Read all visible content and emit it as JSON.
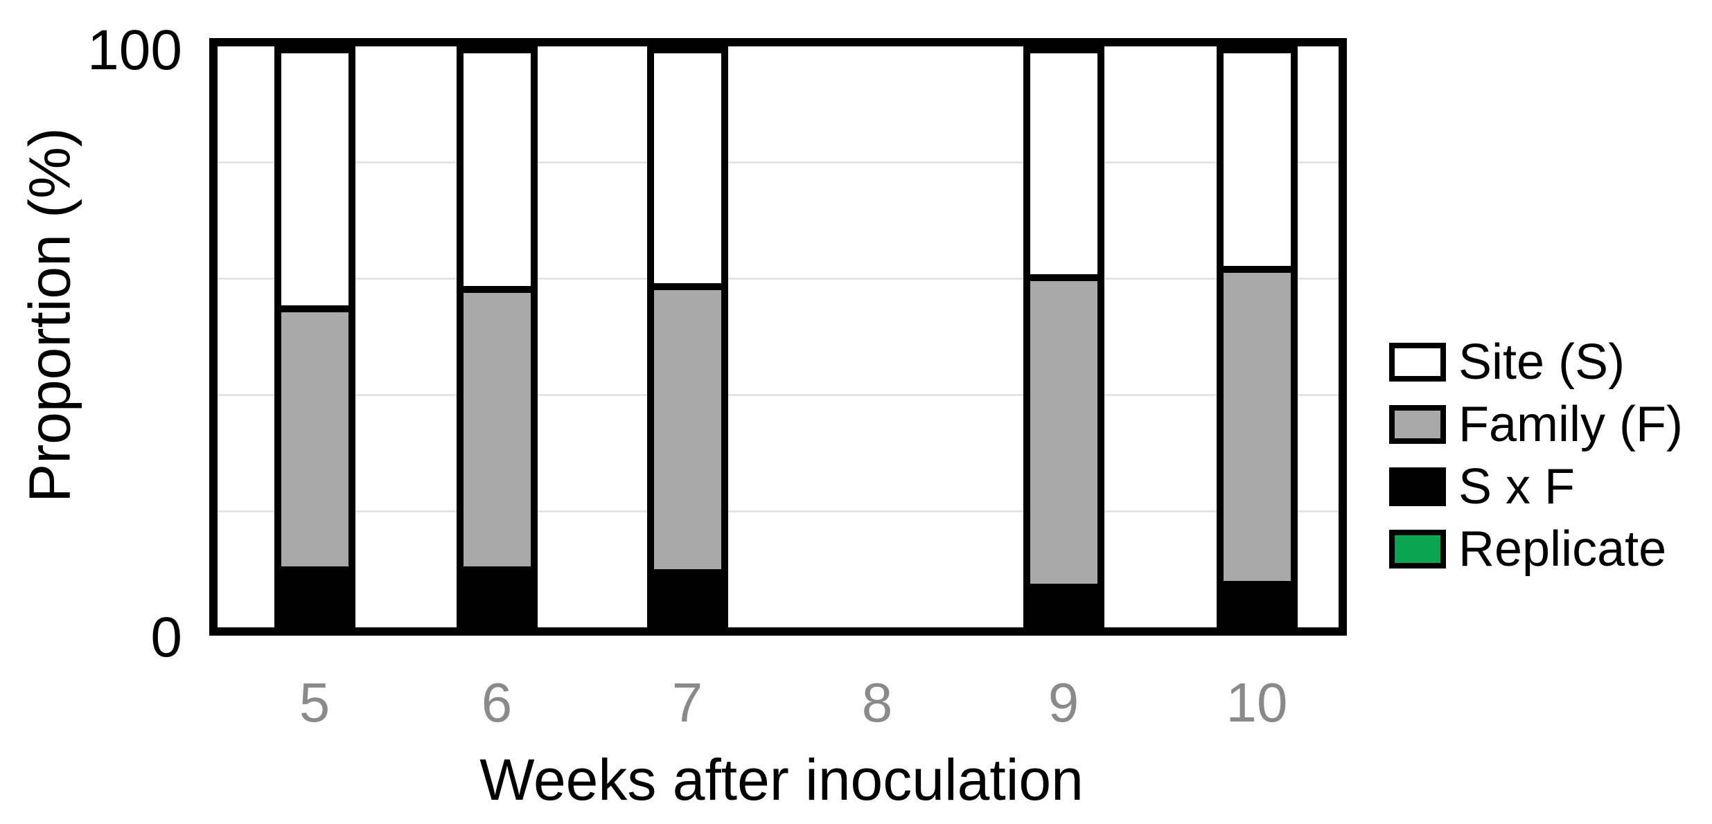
{
  "figure": {
    "y_axis": {
      "title": "Proportion (%)",
      "tick_top": "100",
      "tick_bottom": "0"
    },
    "x_axis": {
      "title": "Weeks after inoculation"
    },
    "legend": {
      "entries": [
        {
          "label": "Site (S)",
          "color": "#ffffff"
        },
        {
          "label": "Family (F)",
          "color": "#a9a9a9"
        },
        {
          "label": "S x F",
          "color": "#000000"
        },
        {
          "label": "Replicate",
          "color": "#0ba552"
        }
      ]
    }
  },
  "chart_data": {
    "type": "bar",
    "stacked": true,
    "title": "",
    "xlabel": "Weeks after inoculation",
    "ylabel": "Proportion (%)",
    "ylim": [
      0,
      100
    ],
    "y_ticks_shown": [
      "0",
      "100"
    ],
    "gridlines_percent": [
      20,
      40,
      60,
      80
    ],
    "grid": "horizontal-light-gray",
    "legend_position": "right",
    "categories": [
      "5",
      "6",
      "7",
      "8",
      "9",
      "10"
    ],
    "series": [
      {
        "name": "S x F",
        "color": "#000000",
        "stack_order": "bottom",
        "values": [
          9.5,
          9.5,
          9,
          0,
          6.5,
          7
        ]
      },
      {
        "name": "Family (F)",
        "color": "#a9a9a9",
        "stack_order": "middle",
        "values": [
          46,
          49.5,
          50.5,
          0,
          54.5,
          55.5
        ]
      },
      {
        "name": "Site (S)",
        "color": "#ffffff",
        "stack_order": "top",
        "values": [
          44.5,
          41,
          40.5,
          0,
          39,
          37.5
        ]
      },
      {
        "name": "Replicate",
        "color": "#0ba552",
        "stack_order": "none",
        "values": [
          0,
          0,
          0,
          0,
          0,
          0
        ]
      }
    ],
    "note_week_8": "no bar drawn at week 8"
  }
}
